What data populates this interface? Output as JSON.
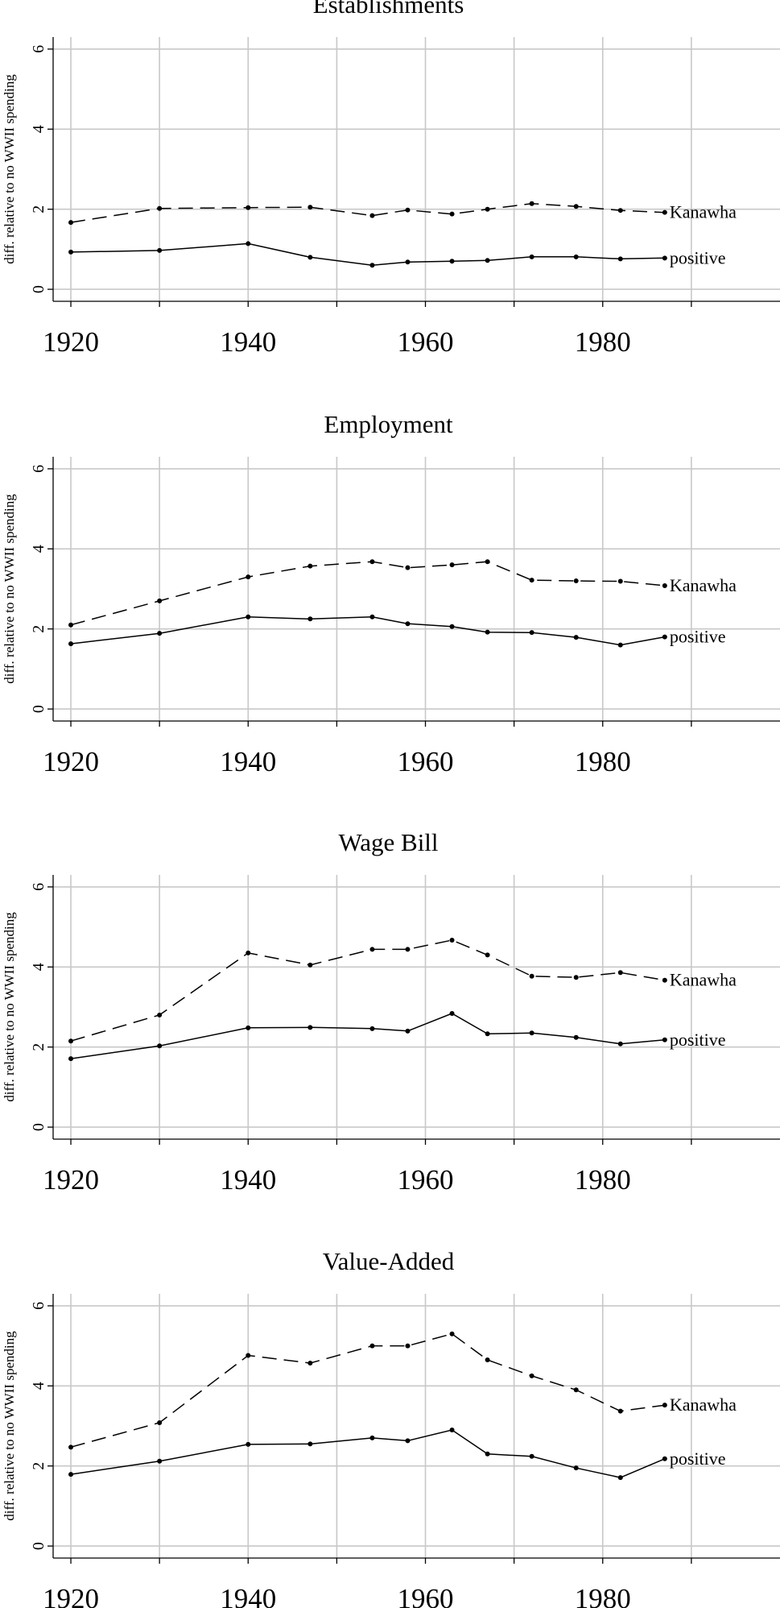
{
  "chart_data": [
    {
      "type": "line",
      "title": "Establishments",
      "ylabel": "diff. relative to no WWII spending",
      "xlim": [
        1918,
        2000
      ],
      "ylim": [
        -0.3,
        6.3
      ],
      "x_gridlines": [
        1920,
        1930,
        1940,
        1950,
        1960,
        1970,
        1980,
        1990
      ],
      "x_ticklabels": [
        "1920",
        "1940",
        "1960",
        "1980"
      ],
      "y_ticks": [
        0,
        2,
        4,
        6
      ],
      "y_ticklabels": [
        "0",
        "2",
        "4",
        "6"
      ],
      "grid": true,
      "x": [
        1920,
        1930,
        1940,
        1947,
        1954,
        1958,
        1963,
        1967,
        1972,
        1977,
        1982,
        1987
      ],
      "series": [
        {
          "name": "Kanawha",
          "style": "dashed",
          "values": [
            1.67,
            2.02,
            2.04,
            2.05,
            1.84,
            1.98,
            1.88,
            2.0,
            2.14,
            2.07,
            1.97,
            1.92
          ]
        },
        {
          "name": "positive",
          "style": "solid",
          "values": [
            0.93,
            0.97,
            1.14,
            0.8,
            0.6,
            0.68,
            0.7,
            0.72,
            0.81,
            0.81,
            0.76,
            0.78
          ]
        }
      ]
    },
    {
      "type": "line",
      "title": "Employment",
      "ylabel": "diff. relative to no WWII spending",
      "xlim": [
        1918,
        2000
      ],
      "ylim": [
        -0.3,
        6.3
      ],
      "x_gridlines": [
        1920,
        1930,
        1940,
        1950,
        1960,
        1970,
        1980,
        1990
      ],
      "x_ticklabels": [
        "1920",
        "1940",
        "1960",
        "1980"
      ],
      "y_ticks": [
        0,
        2,
        4,
        6
      ],
      "y_ticklabels": [
        "0",
        "2",
        "4",
        "6"
      ],
      "grid": true,
      "x": [
        1920,
        1930,
        1940,
        1947,
        1954,
        1958,
        1963,
        1967,
        1972,
        1977,
        1982,
        1987
      ],
      "series": [
        {
          "name": "Kanawha",
          "style": "dashed",
          "values": [
            2.1,
            2.7,
            3.3,
            3.57,
            3.68,
            3.53,
            3.6,
            3.68,
            3.22,
            3.2,
            3.19,
            3.08
          ]
        },
        {
          "name": "positive",
          "style": "solid",
          "values": [
            1.63,
            1.89,
            2.3,
            2.25,
            2.3,
            2.13,
            2.06,
            1.92,
            1.91,
            1.79,
            1.6,
            1.8
          ]
        }
      ]
    },
    {
      "type": "line",
      "title": "Wage Bill",
      "ylabel": "diff. relative to no WWII spending",
      "xlim": [
        1918,
        2000
      ],
      "ylim": [
        -0.3,
        6.3
      ],
      "x_gridlines": [
        1920,
        1930,
        1940,
        1950,
        1960,
        1970,
        1980,
        1990
      ],
      "x_ticklabels": [
        "1920",
        "1940",
        "1960",
        "1980"
      ],
      "y_ticks": [
        0,
        2,
        4,
        6
      ],
      "y_ticklabels": [
        "0",
        "2",
        "4",
        "6"
      ],
      "grid": true,
      "x": [
        1920,
        1930,
        1940,
        1947,
        1954,
        1958,
        1963,
        1967,
        1972,
        1977,
        1982,
        1987
      ],
      "series": [
        {
          "name": "Kanawha",
          "style": "dashed",
          "values": [
            2.15,
            2.8,
            4.35,
            4.05,
            4.44,
            4.44,
            4.67,
            4.3,
            3.77,
            3.74,
            3.86,
            3.67
          ]
        },
        {
          "name": "positive",
          "style": "solid",
          "values": [
            1.71,
            2.03,
            2.48,
            2.49,
            2.46,
            2.4,
            2.84,
            2.33,
            2.35,
            2.24,
            2.08,
            2.18
          ]
        }
      ]
    },
    {
      "type": "line",
      "title": "Value-Added",
      "ylabel": "diff. relative to no WWII spending",
      "xlim": [
        1918,
        2000
      ],
      "ylim": [
        -0.3,
        6.3
      ],
      "x_gridlines": [
        1920,
        1930,
        1940,
        1950,
        1960,
        1970,
        1980,
        1990
      ],
      "x_ticklabels": [
        "1920",
        "1940",
        "1960",
        "1980"
      ],
      "y_ticks": [
        0,
        2,
        4,
        6
      ],
      "y_ticklabels": [
        "0",
        "2",
        "4",
        "6"
      ],
      "grid": true,
      "x": [
        1920,
        1930,
        1940,
        1947,
        1954,
        1958,
        1963,
        1967,
        1972,
        1977,
        1982,
        1987
      ],
      "series": [
        {
          "name": "Kanawha",
          "style": "dashed",
          "values": [
            2.47,
            3.08,
            4.76,
            4.57,
            5.0,
            5.0,
            5.3,
            4.65,
            4.25,
            3.9,
            3.37,
            3.52
          ]
        },
        {
          "name": "positive",
          "style": "solid",
          "values": [
            1.79,
            2.12,
            2.54,
            2.55,
            2.7,
            2.63,
            2.9,
            2.3,
            2.24,
            1.95,
            1.71,
            2.18
          ]
        }
      ]
    }
  ]
}
